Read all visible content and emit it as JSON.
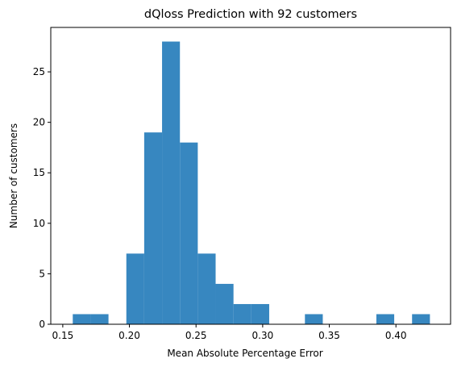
{
  "chart_data": {
    "type": "bar",
    "title": "dQloss Prediction with 92 customers",
    "xlabel": "Mean Absolute Percentage Error",
    "ylabel": "Number of customers",
    "xlim": [
      0.141,
      0.441
    ],
    "ylim": [
      0,
      29.4
    ],
    "grid": false,
    "bar_color": "#3787c0",
    "bins": [
      {
        "x0": 0.1575,
        "x1": 0.1709,
        "count": 1
      },
      {
        "x0": 0.1709,
        "x1": 0.1843,
        "count": 1
      },
      {
        "x0": 0.1843,
        "x1": 0.1977,
        "count": 0
      },
      {
        "x0": 0.1977,
        "x1": 0.2111,
        "count": 7
      },
      {
        "x0": 0.2111,
        "x1": 0.2245,
        "count": 19
      },
      {
        "x0": 0.2245,
        "x1": 0.2379,
        "count": 28
      },
      {
        "x0": 0.2379,
        "x1": 0.2513,
        "count": 18
      },
      {
        "x0": 0.2513,
        "x1": 0.2647,
        "count": 7
      },
      {
        "x0": 0.2647,
        "x1": 0.2781,
        "count": 4
      },
      {
        "x0": 0.2781,
        "x1": 0.2915,
        "count": 2
      },
      {
        "x0": 0.2915,
        "x1": 0.3049,
        "count": 2
      },
      {
        "x0": 0.3049,
        "x1": 0.3183,
        "count": 0
      },
      {
        "x0": 0.3183,
        "x1": 0.3317,
        "count": 0
      },
      {
        "x0": 0.3317,
        "x1": 0.3451,
        "count": 1
      },
      {
        "x0": 0.3451,
        "x1": 0.3585,
        "count": 0
      },
      {
        "x0": 0.3585,
        "x1": 0.3719,
        "count": 0
      },
      {
        "x0": 0.3719,
        "x1": 0.3853,
        "count": 0
      },
      {
        "x0": 0.3853,
        "x1": 0.3987,
        "count": 1
      },
      {
        "x0": 0.3987,
        "x1": 0.4121,
        "count": 0
      },
      {
        "x0": 0.4121,
        "x1": 0.4255,
        "count": 1
      }
    ],
    "xticks": [
      {
        "value": 0.15,
        "label": "0.15"
      },
      {
        "value": 0.2,
        "label": "0.20"
      },
      {
        "value": 0.25,
        "label": "0.25"
      },
      {
        "value": 0.3,
        "label": "0.30"
      },
      {
        "value": 0.35,
        "label": "0.35"
      },
      {
        "value": 0.4,
        "label": "0.40"
      }
    ],
    "yticks": [
      {
        "value": 0,
        "label": "0"
      },
      {
        "value": 5,
        "label": "5"
      },
      {
        "value": 10,
        "label": "10"
      },
      {
        "value": 15,
        "label": "15"
      },
      {
        "value": 20,
        "label": "20"
      },
      {
        "value": 25,
        "label": "25"
      }
    ]
  }
}
